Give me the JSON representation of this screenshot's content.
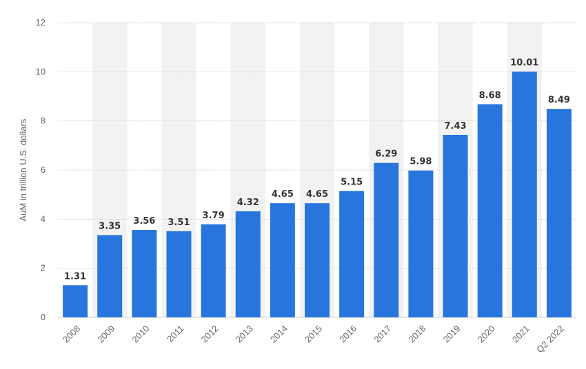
{
  "chart_data": {
    "type": "bar",
    "categories": [
      "2008",
      "2009",
      "2010",
      "2011",
      "2012",
      "2013",
      "2014",
      "2015",
      "2016",
      "2017",
      "2018",
      "2019",
      "2020",
      "2021",
      "Q2 2022"
    ],
    "values": [
      1.31,
      3.35,
      3.56,
      3.51,
      3.79,
      4.32,
      4.65,
      4.65,
      5.15,
      6.29,
      5.98,
      7.43,
      8.68,
      10.01,
      8.49
    ],
    "value_labels": [
      "1.31",
      "3.35",
      "3.56",
      "3.51",
      "3.79",
      "4.32",
      "4.65",
      "4.65",
      "5.15",
      "6.29",
      "5.98",
      "7.43",
      "8.68",
      "10.01",
      "8.49"
    ],
    "ylabel": "AuM in trillion U.S. dollars",
    "ylim": [
      0,
      12
    ],
    "yticks": [
      0,
      2,
      4,
      6,
      8,
      10,
      12
    ],
    "grid": true,
    "colors": {
      "bar": "#2876dd",
      "band": "#f2f2f2",
      "grid": "#cccccc"
    }
  }
}
